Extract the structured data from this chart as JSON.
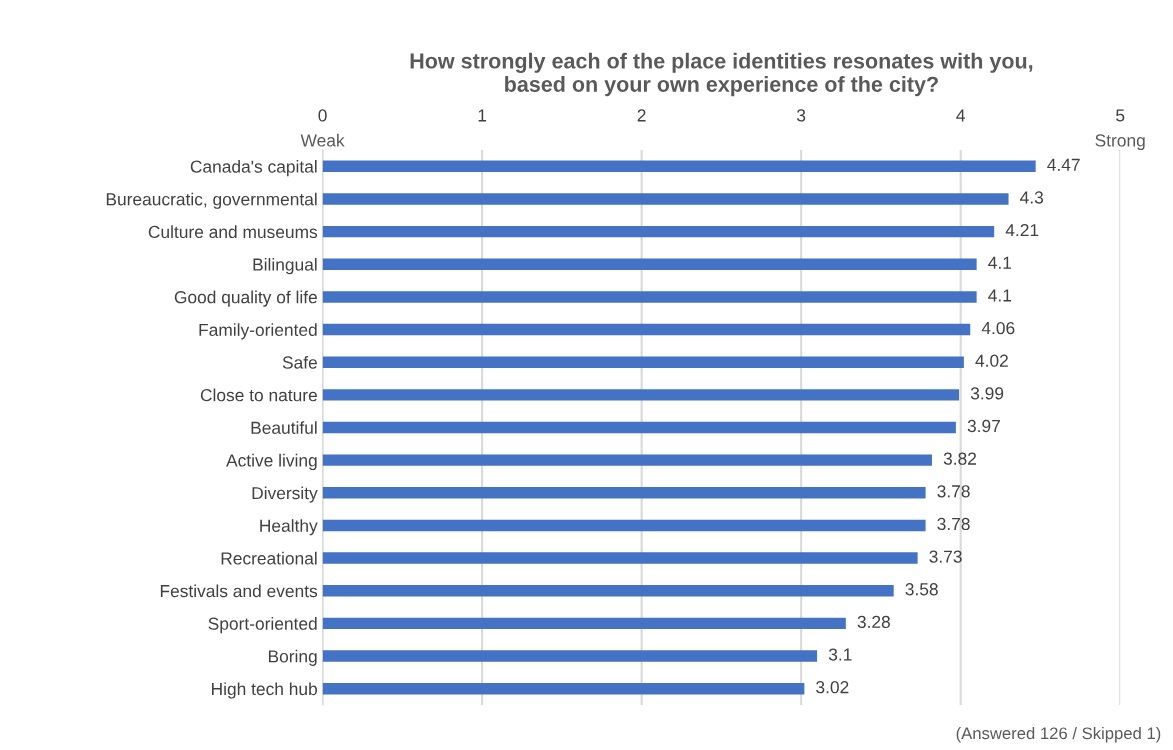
{
  "chart_data": {
    "type": "bar",
    "orientation": "horizontal",
    "title": "How strongly each of the place identities resonates with you,\nbased on your own experience of the city?",
    "categories": [
      "Canada's capital",
      "Bureaucratic, governmental",
      "Culture and museums",
      "Bilingual",
      "Good quality of life",
      "Family-oriented",
      "Safe",
      "Close to nature",
      "Beautiful",
      "Active living",
      "Diversity",
      "Healthy",
      "Recreational",
      "Festivals and events",
      "Sport-oriented",
      "Boring",
      "High tech hub"
    ],
    "values": [
      4.47,
      4.3,
      4.21,
      4.1,
      4.1,
      4.06,
      4.02,
      3.99,
      3.97,
      3.82,
      3.78,
      3.78,
      3.73,
      3.58,
      3.28,
      3.1,
      3.02
    ],
    "color": "#4472c4",
    "xlim": [
      0,
      5
    ],
    "xticks": [
      0,
      1,
      2,
      3,
      4,
      5
    ],
    "grid": "x",
    "data_labels": true,
    "annotations": [
      "Weak",
      "Strong",
      "(Answered 126 / Skipped 1)"
    ]
  }
}
